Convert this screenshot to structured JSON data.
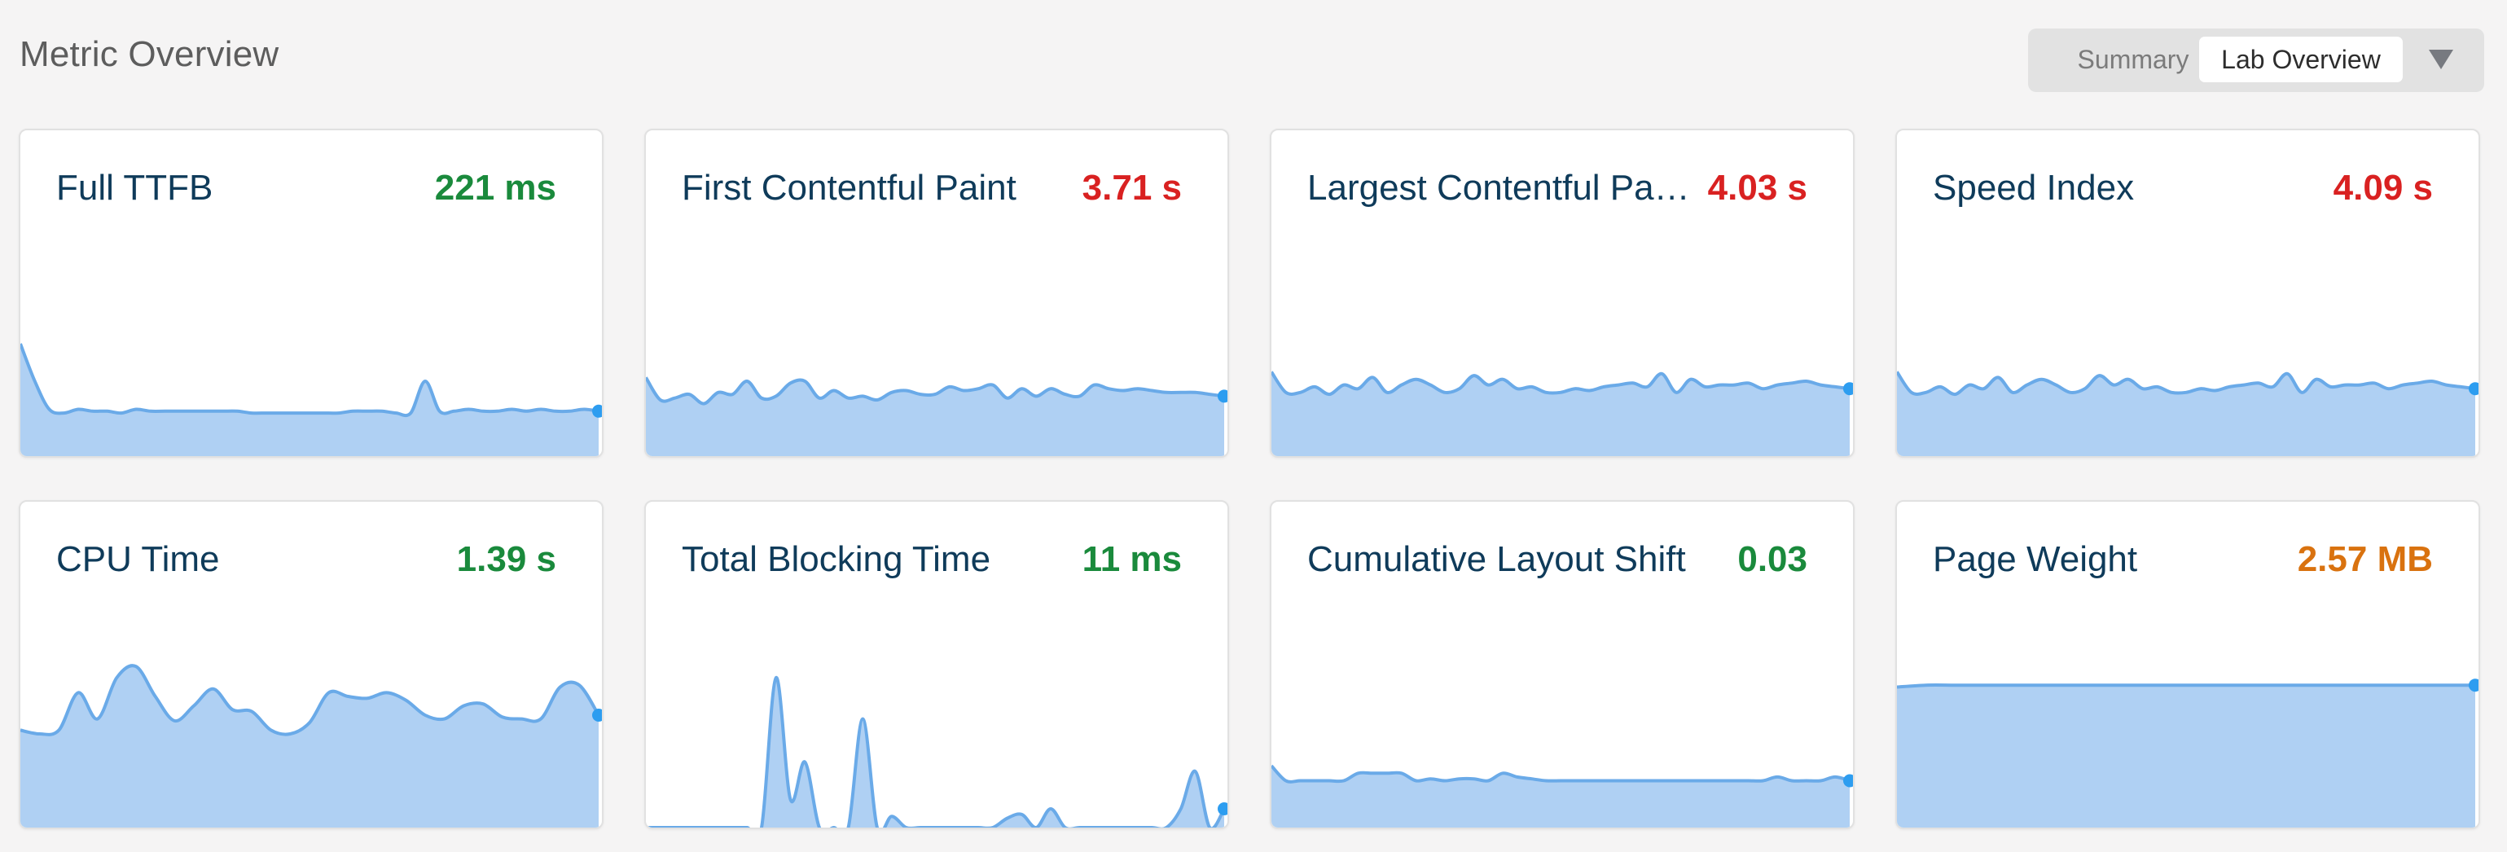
{
  "header": {
    "title": "Metric Overview",
    "views": [
      "Summary",
      "Lab Overview"
    ],
    "selected_view": "Lab Overview",
    "dropdown_icon": "caret-down-icon"
  },
  "colors": {
    "good": "#1a8a3c",
    "poor": "#d92121",
    "needs_improvement": "#d9720f",
    "area_fill": "#afd0f3",
    "area_stroke": "#6aaae8",
    "endpoint_dot": "#2d9df0",
    "title": "#0f3b5a"
  },
  "metrics": [
    {
      "name": "Full TTFB",
      "value": "221 ms",
      "status": "good",
      "trend": [
        0.6,
        0.4,
        0.25,
        0.23,
        0.25,
        0.24,
        0.24,
        0.23,
        0.25,
        0.24,
        0.24,
        0.24,
        0.24,
        0.24,
        0.24,
        0.24,
        0.23,
        0.23,
        0.23,
        0.23,
        0.23,
        0.23,
        0.23,
        0.24,
        0.24,
        0.24,
        0.23,
        0.23,
        0.4,
        0.24,
        0.24,
        0.25,
        0.24,
        0.24,
        0.25,
        0.24,
        0.25,
        0.24,
        0.24,
        0.25,
        0.24
      ]
    },
    {
      "name": "First Contentful Paint",
      "value": "3.71 s",
      "status": "poor",
      "trend": [
        0.42,
        0.3,
        0.31,
        0.33,
        0.28,
        0.34,
        0.33,
        0.4,
        0.31,
        0.32,
        0.39,
        0.4,
        0.31,
        0.35,
        0.31,
        0.32,
        0.3,
        0.34,
        0.35,
        0.33,
        0.33,
        0.37,
        0.35,
        0.36,
        0.38,
        0.31,
        0.36,
        0.32,
        0.36,
        0.33,
        0.32,
        0.38,
        0.36,
        0.35,
        0.36,
        0.35,
        0.34,
        0.34,
        0.34,
        0.33,
        0.32
      ]
    },
    {
      "name": "Largest Contentful Paint",
      "value": "4.03 s",
      "status": "poor",
      "trend": [
        0.45,
        0.34,
        0.34,
        0.37,
        0.33,
        0.38,
        0.36,
        0.42,
        0.34,
        0.38,
        0.41,
        0.38,
        0.34,
        0.36,
        0.43,
        0.38,
        0.41,
        0.36,
        0.37,
        0.34,
        0.34,
        0.36,
        0.35,
        0.37,
        0.38,
        0.39,
        0.37,
        0.44,
        0.34,
        0.41,
        0.37,
        0.38,
        0.38,
        0.39,
        0.36,
        0.38,
        0.39,
        0.4,
        0.38,
        0.37,
        0.36
      ]
    },
    {
      "name": "Speed Index",
      "value": "4.09 s",
      "status": "poor",
      "trend": [
        0.45,
        0.34,
        0.34,
        0.37,
        0.33,
        0.38,
        0.36,
        0.42,
        0.34,
        0.38,
        0.41,
        0.38,
        0.34,
        0.36,
        0.43,
        0.38,
        0.41,
        0.36,
        0.37,
        0.34,
        0.34,
        0.36,
        0.35,
        0.37,
        0.38,
        0.39,
        0.37,
        0.44,
        0.34,
        0.41,
        0.37,
        0.38,
        0.38,
        0.39,
        0.36,
        0.38,
        0.39,
        0.4,
        0.38,
        0.37,
        0.36
      ]
    },
    {
      "name": "CPU Time",
      "value": "1.39 s",
      "status": "good",
      "trend": [
        0.52,
        0.5,
        0.52,
        0.72,
        0.58,
        0.8,
        0.86,
        0.7,
        0.57,
        0.65,
        0.74,
        0.63,
        0.62,
        0.52,
        0.5,
        0.56,
        0.72,
        0.7,
        0.69,
        0.72,
        0.68,
        0.6,
        0.58,
        0.65,
        0.66,
        0.59,
        0.58,
        0.58,
        0.75,
        0.76,
        0.6
      ]
    },
    {
      "name": "Total Blocking Time",
      "value": "11 ms",
      "status": "good",
      "trend": [
        0,
        0,
        0,
        0,
        0,
        0,
        0,
        0,
        0,
        0.8,
        0.15,
        0.35,
        0.0,
        0,
        0,
        0.58,
        0,
        0.06,
        0,
        0,
        0,
        0,
        0,
        0,
        0,
        0.05,
        0.07,
        0,
        0.1,
        0,
        0,
        0,
        0,
        0,
        0,
        0,
        0,
        0.1,
        0.3,
        0,
        0.1
      ]
    },
    {
      "name": "Cumulative Layout Shift",
      "value": "0.03",
      "status": "good",
      "trend": [
        0.33,
        0.25,
        0.25,
        0.25,
        0.25,
        0.25,
        0.29,
        0.29,
        0.29,
        0.29,
        0.25,
        0.26,
        0.25,
        0.26,
        0.26,
        0.25,
        0.29,
        0.27,
        0.26,
        0.25,
        0.25,
        0.25,
        0.25,
        0.25,
        0.25,
        0.25,
        0.25,
        0.25,
        0.25,
        0.25,
        0.25,
        0.25,
        0.25,
        0.25,
        0.25,
        0.27,
        0.25,
        0.25,
        0.25,
        0.27,
        0.25
      ]
    },
    {
      "name": "Page Weight",
      "value": "2.57 MB",
      "status": "needs_improvement",
      "trend": [
        0.75,
        0.76,
        0.76,
        0.76,
        0.76,
        0.76,
        0.76,
        0.76,
        0.76,
        0.76,
        0.76,
        0.76,
        0.76,
        0.76,
        0.76,
        0.76,
        0.76,
        0.76,
        0.76,
        0.76,
        0.76
      ]
    }
  ]
}
